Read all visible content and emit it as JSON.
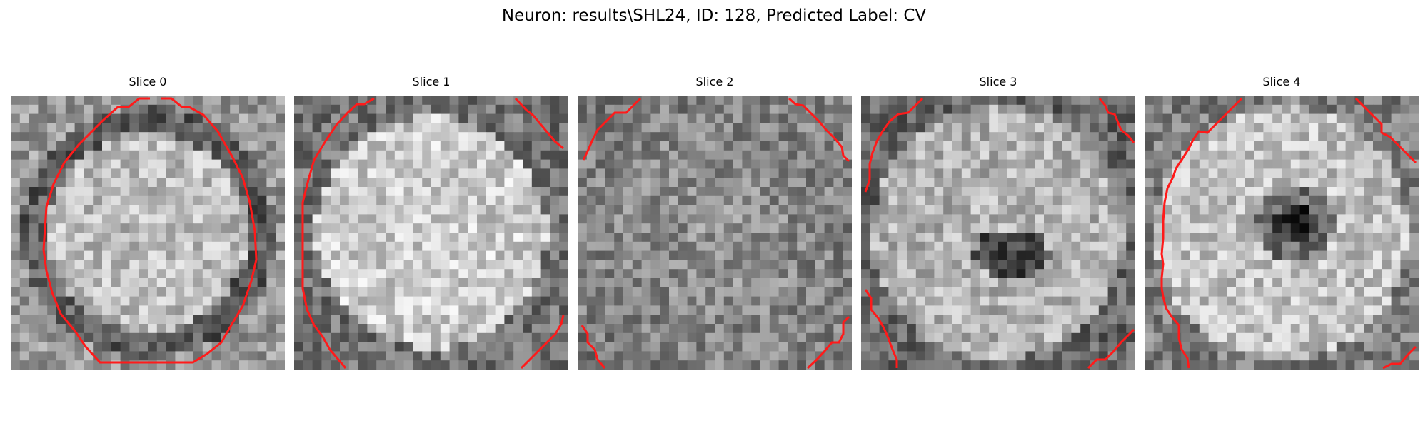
{
  "figure": {
    "title": "Neuron: results\\SHL24, ID: 128, Predicted Label: CV"
  },
  "panels": [
    {
      "title": "Slice 0",
      "seed": 11,
      "pattern": "ring"
    },
    {
      "title": "Slice 1",
      "seed": 23,
      "pattern": "bright"
    },
    {
      "title": "Slice 2",
      "seed": 37,
      "pattern": "flat"
    },
    {
      "title": "Slice 3",
      "seed": 51,
      "pattern": "dark-center"
    },
    {
      "title": "Slice 4",
      "seed": 67,
      "pattern": "dark-spot"
    }
  ],
  "colors": {
    "contour": "#ff1a1a",
    "background": "#ffffff"
  }
}
